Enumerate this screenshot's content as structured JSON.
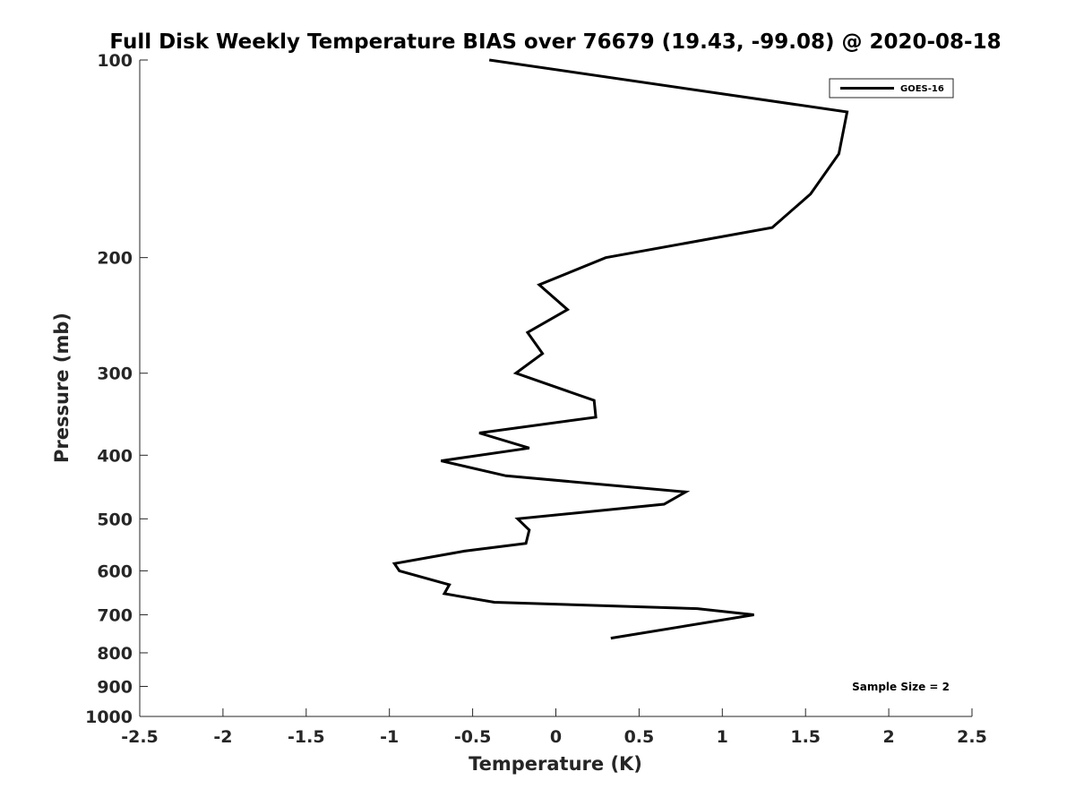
{
  "chart_data": {
    "type": "line",
    "title": "Full Disk Weekly Temperature BIAS over 76679 (19.43, -99.08) @ 2020-08-18",
    "xlabel": "Temperature (K)",
    "ylabel": "Pressure (mb)",
    "xlim": [
      -2.5,
      2.5
    ],
    "ylim": [
      100,
      1000
    ],
    "y_scale": "log",
    "y_reversed": true,
    "x_ticks": [
      "-2.5",
      "-2",
      "-1.5",
      "-1",
      "-0.5",
      "0",
      "0.5",
      "1",
      "1.5",
      "2",
      "2.5"
    ],
    "y_ticks": [
      "100",
      "200",
      "300",
      "400",
      "500",
      "600",
      "700",
      "800",
      "900",
      "1000"
    ],
    "grid": false,
    "legend_position": "top-right",
    "color": "#000000",
    "series": [
      {
        "name": "GOES-16",
        "x": [
          -0.4,
          1.75,
          1.7,
          1.53,
          1.3,
          0.3,
          -0.1,
          0.07,
          -0.17,
          -0.08,
          -0.24,
          0.23,
          0.24,
          -0.46,
          -0.16,
          -0.69,
          -0.3,
          0.78,
          0.65,
          -0.23,
          -0.16,
          -0.18,
          -0.55,
          -0.97,
          -0.94,
          -0.64,
          -0.67,
          -0.37,
          0.85,
          1.19,
          0.33
        ],
        "y": [
          100,
          120,
          139,
          160,
          180,
          200,
          220,
          240,
          260,
          280,
          300,
          330,
          350,
          370,
          390,
          408,
          430,
          455,
          475,
          500,
          520,
          545,
          560,
          585,
          600,
          630,
          650,
          670,
          685,
          700,
          760
        ]
      }
    ],
    "annotation": "Sample Size = 2"
  }
}
